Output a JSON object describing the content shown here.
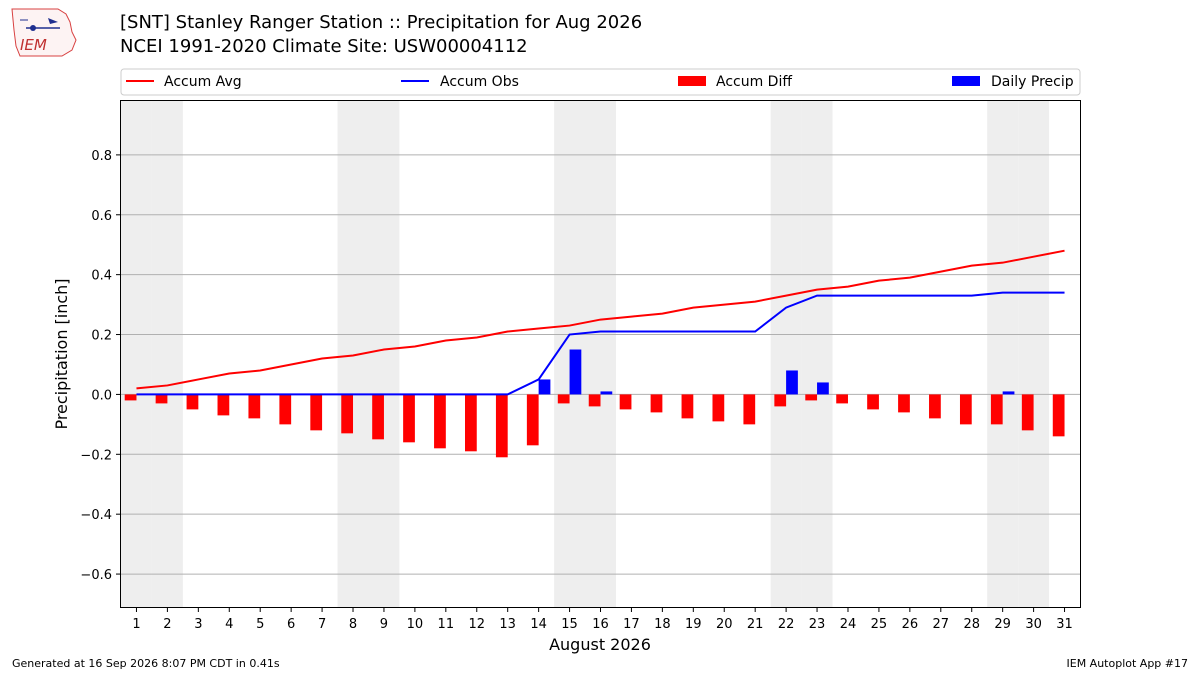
{
  "header": {
    "title": "[SNT] Stanley Ranger Station :: Precipitation for Aug 2026",
    "subtitle": "NCEI 1991-2020 Climate Site: USW00004112"
  },
  "footer": {
    "generated": "Generated at 16 Sep 2026 8:07 PM CDT in 0.41s",
    "app": "IEM Autoplot App #17"
  },
  "logo": {
    "text": "IEM"
  },
  "colors": {
    "avg": "#ff0000",
    "obs": "#0000ff",
    "diff": "#ff0000",
    "daily": "#0000ff",
    "weekend": "#eeeeee",
    "grid": "#b0b0b0"
  },
  "chart_data": {
    "type": "bar",
    "title": "[SNT] Stanley Ranger Station :: Precipitation for Aug 2026",
    "xlabel": "August 2026",
    "ylabel": "Precipitation [inch]",
    "ylim": [
      -0.71,
      0.98
    ],
    "yticks": [
      -0.6,
      -0.4,
      -0.2,
      0.0,
      0.2,
      0.4,
      0.6,
      0.8
    ],
    "ytick_labels": [
      "−0.6",
      "−0.4",
      "−0.2",
      "0.0",
      "0.2",
      "0.4",
      "0.6",
      "0.8"
    ],
    "grid": "horizontal",
    "legend_placement": "top",
    "weekend_days": [
      1,
      2,
      8,
      9,
      15,
      16,
      22,
      23,
      29,
      30
    ],
    "days": [
      1,
      2,
      3,
      4,
      5,
      6,
      7,
      8,
      9,
      10,
      11,
      12,
      13,
      14,
      15,
      16,
      17,
      18,
      19,
      20,
      21,
      22,
      23,
      24,
      25,
      26,
      27,
      28,
      29,
      30,
      31
    ],
    "series": [
      {
        "name": "Accum Avg",
        "kind": "line",
        "values": [
          0.02,
          0.03,
          0.05,
          0.07,
          0.08,
          0.1,
          0.12,
          0.13,
          0.15,
          0.16,
          0.18,
          0.19,
          0.21,
          0.22,
          0.23,
          0.25,
          0.26,
          0.27,
          0.29,
          0.3,
          0.31,
          0.33,
          0.35,
          0.36,
          0.38,
          0.39,
          0.41,
          0.43,
          0.44,
          0.46,
          0.48
        ]
      },
      {
        "name": "Accum Obs",
        "kind": "line",
        "values": [
          0,
          0,
          0,
          0,
          0,
          0,
          0,
          0,
          0,
          0,
          0,
          0,
          0,
          0.05,
          0.2,
          0.21,
          0.21,
          0.21,
          0.21,
          0.21,
          0.21,
          0.29,
          0.33,
          0.33,
          0.33,
          0.33,
          0.33,
          0.33,
          0.34,
          0.34,
          0.34
        ]
      },
      {
        "name": "Accum Diff",
        "kind": "bar",
        "values": [
          -0.02,
          -0.03,
          -0.05,
          -0.07,
          -0.08,
          -0.1,
          -0.12,
          -0.13,
          -0.15,
          -0.16,
          -0.18,
          -0.19,
          -0.21,
          -0.17,
          -0.03,
          -0.04,
          -0.05,
          -0.06,
          -0.08,
          -0.09,
          -0.1,
          -0.04,
          -0.02,
          -0.03,
          -0.05,
          -0.06,
          -0.08,
          -0.1,
          -0.1,
          -0.12,
          -0.14
        ]
      },
      {
        "name": "Daily Precip",
        "kind": "bar",
        "values": [
          0,
          0,
          0,
          0,
          0,
          0,
          0,
          0,
          0,
          0,
          0,
          0,
          0,
          0.05,
          0.15,
          0.01,
          0,
          0,
          0,
          0,
          0,
          0.08,
          0.04,
          0,
          0,
          0,
          0,
          0,
          0.01,
          0,
          0
        ]
      }
    ]
  }
}
